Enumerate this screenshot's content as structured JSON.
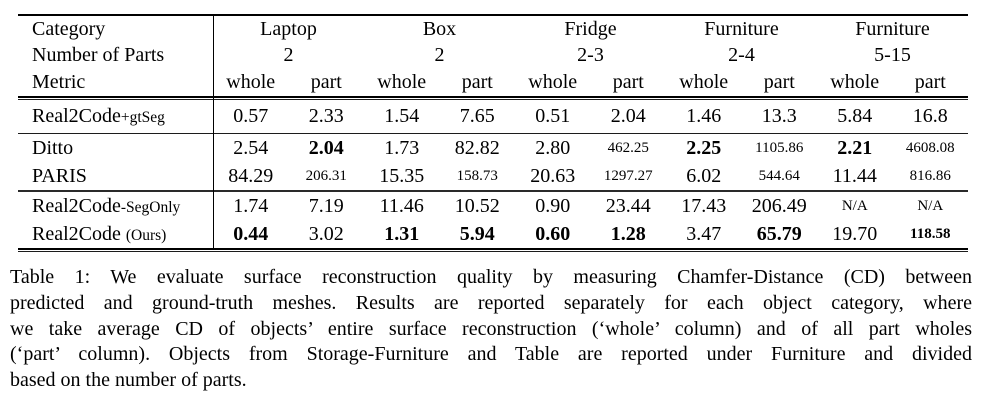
{
  "table": {
    "header": {
      "row_labels": [
        "Category",
        "Number of Parts",
        "Metric"
      ],
      "groups": [
        {
          "category": "Laptop",
          "parts": "2"
        },
        {
          "category": "Box",
          "parts": "2"
        },
        {
          "category": "Fridge",
          "parts": "2-3"
        },
        {
          "category": "Furniture",
          "parts": "2-4"
        },
        {
          "category": "Furniture",
          "parts": "5-15"
        }
      ],
      "metric_labels": [
        "whole",
        "part"
      ]
    },
    "rows": [
      {
        "label": "Real2Code",
        "label_suffix": "+gtSeg",
        "values": [
          "0.57",
          "2.33",
          "1.54",
          "7.65",
          "0.51",
          "2.04",
          "1.46",
          "13.3",
          "5.84",
          "16.8"
        ]
      },
      {
        "label": "Ditto",
        "label_suffix": "",
        "values": [
          "2.54",
          "2.04",
          "1.73",
          "82.82",
          "2.80",
          "462.25",
          "2.25",
          "1105.86",
          "2.21",
          "4608.08"
        ]
      },
      {
        "label": "PARIS",
        "label_suffix": "",
        "values": [
          "84.29",
          "206.31",
          "15.35",
          "158.73",
          "20.63",
          "1297.27",
          "6.02",
          "544.64",
          "11.44",
          "816.86"
        ]
      },
      {
        "label": "Real2Code",
        "label_suffix": "-SegOnly",
        "values": [
          "1.74",
          "7.19",
          "11.46",
          "10.52",
          "0.90",
          "23.44",
          "17.43",
          "206.49",
          "N/A",
          "N/A"
        ]
      },
      {
        "label": "Real2Code",
        "label_suffix": "(Ours)",
        "values": [
          "0.44",
          "3.02",
          "1.31",
          "5.94",
          "0.60",
          "1.28",
          "3.47",
          "65.79",
          "19.70",
          "118.58"
        ]
      }
    ]
  },
  "caption": {
    "lines": [
      "Table 1: We evaluate surface reconstruction quality by measuring Chamfer-Distance (CD) between",
      "predicted and ground-truth meshes. Results are reported separately for each object category, where",
      "we take average CD of objects’ entire surface reconstruction (‘whole’ column) and of all part wholes",
      "(‘part’ column). Objects from Storage-Furniture and Table are reported under Furniture and divided",
      "based on the number of parts."
    ]
  }
}
